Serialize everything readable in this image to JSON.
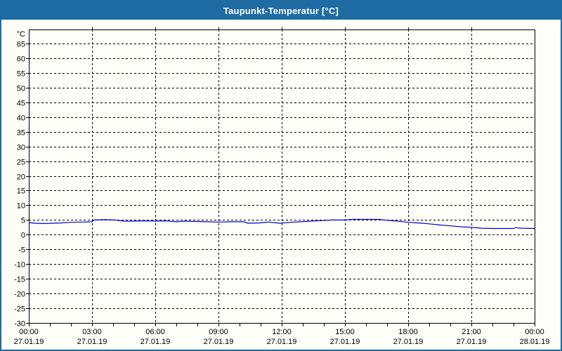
{
  "window": {
    "title": "Taupunkt-Temperatur [°C]",
    "titlebar_color": "#1e6ca3",
    "border_color": "#1e6ca3",
    "background_color": "#fdfef8"
  },
  "chart_data": {
    "type": "line",
    "title": "Taupunkt-Temperatur [°C]",
    "ylabel": "°C",
    "ylim": [
      -30,
      65
    ],
    "y_tick_step": 5,
    "y_tick_labels": [
      "65",
      "60",
      "55",
      "50",
      "45",
      "40",
      "35",
      "30",
      "25",
      "20",
      "15",
      "10",
      "5",
      "0",
      "-5",
      "-10",
      "-15",
      "-20",
      "-25",
      "-30"
    ],
    "x_axis": {
      "range_hours": [
        0,
        24
      ],
      "minor_tick_hours": 1,
      "major_tick_hours": 3,
      "tick_labels": [
        {
          "time": "00:00",
          "date": "27.01.19"
        },
        {
          "time": "03:00",
          "date": "27.01.19"
        },
        {
          "time": "06:00",
          "date": "27.01.19"
        },
        {
          "time": "09:00",
          "date": "27.01.19"
        },
        {
          "time": "12:00",
          "date": "27.01.19"
        },
        {
          "time": "15:00",
          "date": "27.01.19"
        },
        {
          "time": "18:00",
          "date": "27.01.19"
        },
        {
          "time": "21:00",
          "date": "27.01.19"
        },
        {
          "time": "00:00",
          "date": "28.01.19"
        }
      ]
    },
    "grid": "dashed",
    "legend": "none",
    "axis_color": "#000000",
    "series": [
      {
        "name": "Taupunkt-Temperatur",
        "color": "#0000cc",
        "points": [
          [
            0.0,
            4.1
          ],
          [
            0.3,
            3.9
          ],
          [
            0.7,
            3.8
          ],
          [
            1.1,
            3.9
          ],
          [
            1.5,
            4.0
          ],
          [
            2.0,
            4.2
          ],
          [
            2.5,
            4.3
          ],
          [
            3.0,
            4.4
          ],
          [
            3.1,
            5.0
          ],
          [
            3.6,
            5.1
          ],
          [
            4.1,
            5.0
          ],
          [
            4.5,
            4.6
          ],
          [
            5.0,
            4.6
          ],
          [
            5.6,
            4.7
          ],
          [
            6.0,
            4.6
          ],
          [
            6.5,
            4.7
          ],
          [
            7.0,
            4.4
          ],
          [
            7.4,
            4.6
          ],
          [
            8.0,
            4.5
          ],
          [
            8.5,
            4.4
          ],
          [
            9.0,
            4.3
          ],
          [
            9.6,
            4.4
          ],
          [
            10.2,
            4.4
          ],
          [
            10.4,
            3.9
          ],
          [
            10.9,
            4.0
          ],
          [
            11.4,
            4.3
          ],
          [
            11.9,
            3.9
          ],
          [
            12.4,
            4.2
          ],
          [
            12.9,
            4.4
          ],
          [
            13.4,
            4.6
          ],
          [
            13.9,
            4.8
          ],
          [
            14.4,
            5.0
          ],
          [
            15.0,
            5.0
          ],
          [
            15.4,
            5.2
          ],
          [
            16.6,
            5.2
          ],
          [
            17.0,
            4.9
          ],
          [
            17.5,
            4.6
          ],
          [
            18.0,
            4.2
          ],
          [
            18.5,
            4.0
          ],
          [
            19.0,
            3.7
          ],
          [
            19.5,
            3.3
          ],
          [
            20.0,
            3.0
          ],
          [
            20.5,
            2.7
          ],
          [
            21.0,
            2.5
          ],
          [
            21.5,
            2.2
          ],
          [
            22.0,
            2.1
          ],
          [
            23.0,
            2.1
          ],
          [
            23.1,
            2.4
          ],
          [
            23.4,
            2.2
          ],
          [
            24.0,
            2.1
          ]
        ]
      }
    ]
  }
}
